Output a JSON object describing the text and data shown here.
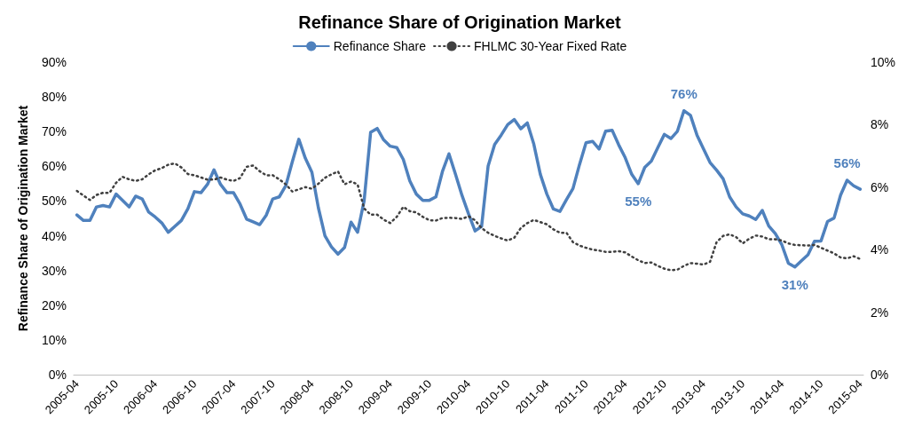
{
  "chart_data": {
    "type": "line",
    "title": "Refinance Share of Origination Market",
    "ylabel": "Refinance Share of Origination Market",
    "categories": [
      "2005-04",
      null,
      null,
      null,
      null,
      null,
      "2005-10",
      null,
      null,
      null,
      null,
      null,
      "2006-04",
      null,
      null,
      null,
      null,
      null,
      "2006-10",
      null,
      null,
      null,
      null,
      null,
      "2007-04",
      null,
      null,
      null,
      null,
      null,
      "2007-10",
      null,
      null,
      null,
      null,
      null,
      "2008-04",
      null,
      null,
      null,
      null,
      null,
      "2008-10",
      null,
      null,
      null,
      null,
      null,
      "2009-04",
      null,
      null,
      null,
      null,
      null,
      "2009-10",
      null,
      null,
      null,
      null,
      null,
      "2010-04",
      null,
      null,
      null,
      null,
      null,
      "2010-10",
      null,
      null,
      null,
      null,
      null,
      "2011-04",
      null,
      null,
      null,
      null,
      null,
      "2011-10",
      null,
      null,
      null,
      null,
      null,
      "2012-04",
      null,
      null,
      null,
      null,
      null,
      "2012-10",
      null,
      null,
      null,
      null,
      null,
      "2013-04",
      null,
      null,
      null,
      null,
      null,
      "2013-10",
      null,
      null,
      null,
      null,
      null,
      "2014-04",
      null,
      null,
      null,
      null,
      null,
      "2014-10",
      null,
      null,
      null,
      null,
      null,
      "2015-04"
    ],
    "series": [
      {
        "name": "Refinance Share",
        "color": "#4f81bd",
        "line_style": "solid",
        "values": [
          46,
          44.4,
          44.4,
          48.3,
          48.7,
          48.3,
          52,
          50.2,
          48.3,
          51.4,
          50.6,
          46.8,
          45.4,
          43.7,
          41,
          42.7,
          44.4,
          47.8,
          52.7,
          52.4,
          54.8,
          59,
          54.8,
          52.4,
          52.4,
          49.1,
          44.8,
          44,
          43.2,
          45.9,
          50.6,
          51.2,
          54.4,
          61.3,
          67.8,
          62.3,
          58.3,
          48,
          40,
          36.8,
          34.7,
          36.6,
          43.9,
          41,
          50,
          69.8,
          70.9,
          67.6,
          65.8,
          65.4,
          62,
          55.8,
          52,
          50.2,
          50.2,
          51.2,
          58.5,
          63.6,
          57.7,
          51.6,
          46.3,
          41.4,
          42.7,
          60.1,
          66.3,
          69,
          72,
          73.5,
          70.8,
          72.5,
          66.4,
          57.7,
          52,
          47.7,
          47,
          50.4,
          53.6,
          60.5,
          66.8,
          67.2,
          65,
          70.1,
          70.4,
          66.2,
          62.5,
          57.7,
          55,
          59.7,
          61.5,
          65.4,
          69.2,
          68,
          70.1,
          76,
          74.7,
          69,
          65,
          61.1,
          58.9,
          56.4,
          51.2,
          48.3,
          46.3,
          45.7,
          44.7,
          47.3,
          42.8,
          40.6,
          37.4,
          32.1,
          31,
          32.8,
          34.5,
          38.4,
          38.5,
          44.1,
          45.1,
          51.7,
          56,
          54.4,
          53.4
        ],
        "value_labels": [
          null,
          null,
          null,
          null,
          null,
          null,
          null,
          null,
          null,
          null,
          null,
          null,
          null,
          null,
          null,
          null,
          null,
          null,
          null,
          null,
          null,
          null,
          null,
          null,
          null,
          null,
          null,
          null,
          null,
          null,
          null,
          null,
          null,
          null,
          null,
          null,
          null,
          null,
          null,
          null,
          null,
          null,
          null,
          null,
          null,
          null,
          null,
          null,
          null,
          null,
          null,
          null,
          null,
          null,
          null,
          null,
          null,
          null,
          null,
          null,
          null,
          null,
          null,
          null,
          null,
          null,
          null,
          null,
          null,
          null,
          null,
          null,
          null,
          null,
          null,
          null,
          null,
          null,
          null,
          null,
          null,
          null,
          null,
          null,
          null,
          null,
          "55%",
          null,
          null,
          null,
          null,
          null,
          null,
          "76%",
          null,
          null,
          null,
          null,
          null,
          null,
          null,
          null,
          null,
          null,
          null,
          null,
          null,
          null,
          null,
          null,
          "31%",
          null,
          null,
          null,
          null,
          null,
          null,
          null,
          "56%",
          null,
          null
        ]
      },
      {
        "name": "FHLMC 30-Year Fixed Rate",
        "color": "#404040",
        "line_style": "dotted",
        "axis": "y2",
        "values": [
          5.88,
          5.73,
          5.59,
          5.75,
          5.82,
          5.82,
          6.14,
          6.33,
          6.25,
          6.2,
          6.25,
          6.41,
          6.54,
          6.61,
          6.72,
          6.76,
          6.63,
          6.42,
          6.38,
          6.31,
          6.24,
          6.24,
          6.31,
          6.24,
          6.2,
          6.29,
          6.65,
          6.69,
          6.51,
          6.38,
          6.38,
          6.25,
          6.09,
          5.86,
          5.93,
          6,
          5.95,
          6.11,
          6.3,
          6.41,
          6.5,
          6.09,
          6.18,
          6.09,
          5.32,
          5.12,
          5.12,
          4.96,
          4.85,
          5.05,
          5.37,
          5.23,
          5.19,
          5.05,
          4.94,
          4.93,
          5.01,
          5.02,
          5.01,
          4.98,
          5.07,
          4.94,
          4.69,
          4.54,
          4.44,
          4.36,
          4.29,
          4.38,
          4.69,
          4.85,
          4.95,
          4.88,
          4.81,
          4.65,
          4.54,
          4.54,
          4.24,
          4.13,
          4.06,
          4,
          3.97,
          3.93,
          3.93,
          3.95,
          3.91,
          3.78,
          3.66,
          3.57,
          3.59,
          3.48,
          3.39,
          3.34,
          3.36,
          3.48,
          3.57,
          3.55,
          3.52,
          3.61,
          4.24,
          4.44,
          4.49,
          4.4,
          4.2,
          4.35,
          4.45,
          4.42,
          4.33,
          4.33,
          4.29,
          4.2,
          4.15,
          4.14,
          4.13,
          4.15,
          4.06,
          3.97,
          3.88,
          3.75,
          3.72,
          3.79,
          3.7
        ]
      }
    ],
    "ylim": [
      0,
      90
    ],
    "yticks": [
      {
        "value": 0,
        "label": "0%"
      },
      {
        "value": 10,
        "label": "10%"
      },
      {
        "value": 20,
        "label": "20%"
      },
      {
        "value": 30,
        "label": "30%"
      },
      {
        "value": 40,
        "label": "40%"
      },
      {
        "value": 50,
        "label": "50%"
      },
      {
        "value": 60,
        "label": "60%"
      },
      {
        "value": 70,
        "label": "70%"
      },
      {
        "value": 80,
        "label": "80%"
      },
      {
        "value": 90,
        "label": "90%"
      }
    ],
    "y2lim": [
      0,
      10
    ],
    "y2ticks": [
      {
        "value": 0,
        "label": "0%"
      },
      {
        "value": 2,
        "label": "2%"
      },
      {
        "value": 4,
        "label": "4%"
      },
      {
        "value": 6,
        "label": "6%"
      },
      {
        "value": 8,
        "label": "8%"
      },
      {
        "value": 10,
        "label": "10%"
      }
    ],
    "legend": "top",
    "grid": false
  }
}
